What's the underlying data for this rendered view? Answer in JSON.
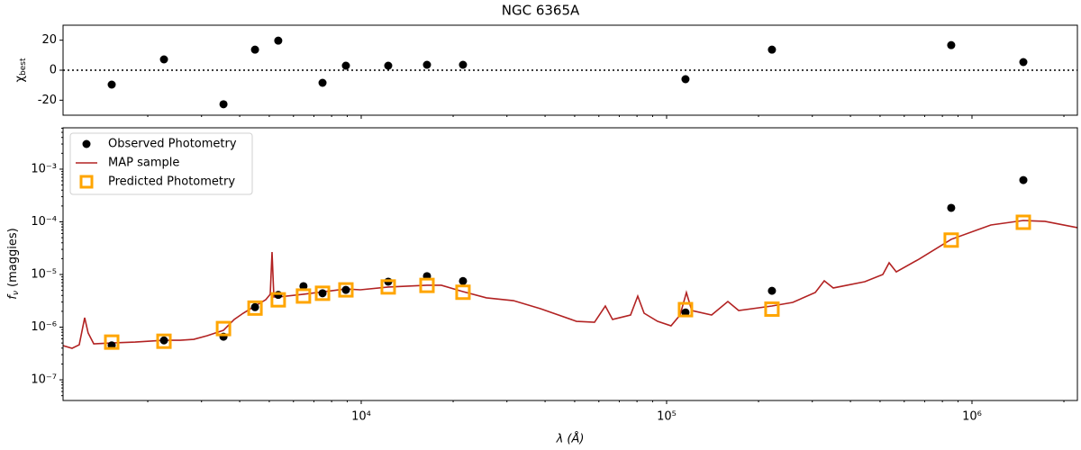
{
  "chart_data": [
    {
      "type": "scatter",
      "title": "NGC 6365A",
      "y_label": "χ",
      "y_label_sub": "best",
      "x": [
        1524,
        2260,
        3540,
        4490,
        5350,
        7470,
        8910,
        12260,
        16420,
        21540,
        115300,
        221300,
        855000,
        1473000
      ],
      "values": [
        -9.6,
        7.2,
        -22.7,
        13.7,
        19.7,
        -8.4,
        3,
        3,
        3.6,
        3.6,
        -6,
        13.7,
        16.7,
        5.4
      ],
      "color": "#000000",
      "xlim": [
        1056,
        2214000
      ],
      "log_x": true,
      "ylim": [
        -30,
        30
      ],
      "yticks": [
        -20,
        0,
        20
      ],
      "hline": 0
    },
    {
      "type": "sed",
      "x_label": "λ (Å)",
      "y_label": "f",
      "y_label_sub": "ν",
      "y_label_rest": " (maggies)",
      "xlim": [
        1056,
        2214000
      ],
      "log_x": true,
      "ylim": [
        4.05e-08,
        0.0061
      ],
      "log_y": true,
      "xticks": [
        {
          "value": 10000,
          "label": "10⁴"
        },
        {
          "value": 100000,
          "label": "10⁵"
        },
        {
          "value": 1000000,
          "label": "10⁶"
        }
      ],
      "yticks": [
        {
          "value": 1e-07,
          "label": "10⁻⁷"
        },
        {
          "value": 1e-06,
          "label": "10⁻⁶"
        },
        {
          "value": 1e-05,
          "label": "10⁻⁵"
        },
        {
          "value": 0.0001,
          "label": "10⁻⁴"
        },
        {
          "value": 0.001,
          "label": "10⁻³"
        }
      ],
      "legend": "upper left",
      "series": [
        {
          "name": "Observed Photometry",
          "color": "#000000",
          "marker": "circle",
          "x": [
            1524,
            2260,
            3540,
            4490,
            5350,
            6470,
            7470,
            8910,
            12260,
            16420,
            21540,
            115300,
            221300,
            855000,
            1473000
          ],
          "values": [
            4.5e-07,
            5.6e-07,
            6.6e-07,
            2.4e-06,
            4.1e-06,
            6e-06,
            4.4e-06,
            5.1e-06,
            7.3e-06,
            9.3e-06,
            7.5e-06,
            1.9e-06,
            4.9e-06,
            0.000184,
            0.00062
          ]
        },
        {
          "name": "MAP sample",
          "color": "#b22222",
          "marker": "line",
          "x": [
            1056,
            1130,
            1193,
            1243,
            1276,
            1331,
            1524,
            1818,
            2260,
            2553,
            2828,
            3131,
            3538,
            3837,
            4108,
            4487,
            4868,
            5036,
            5105,
            5176,
            5354,
            6474,
            7568,
            8913,
            9932,
            12260,
            16420,
            18300,
            21530,
            25700,
            31510,
            38640,
            50700,
            58070,
            63000,
            66530,
            76200,
            80450,
            84400,
            93440,
            103400,
            110700,
            116100,
            120900,
            140400,
            158700,
            172200,
            221300,
            258800,
            306800,
            328300,
            351400,
            445600,
            510500,
            535400,
            565100,
            669900,
            855000,
            1153000,
            1472000,
            1733000,
            2214000
          ],
          "values": [
            4.46e-07,
            3.97e-07,
            4.64e-07,
            1.51e-06,
            7.74e-07,
            4.83e-07,
            5.02e-07,
            5.22e-07,
            5.65e-07,
            5.65e-07,
            5.87e-07,
            6.88e-07,
            8.71e-07,
            1.4e-06,
            1.84e-06,
            2.52e-06,
            3.32e-06,
            4.21e-06,
            2.67e-05,
            3.74e-06,
            3.74e-06,
            4.21e-06,
            4.73e-06,
            5.32e-06,
            5.12e-06,
            5.77e-06,
            6.24e-06,
            6.24e-06,
            4.73e-06,
            3.6e-06,
            3.19e-06,
            2.24e-06,
            1.29e-06,
            1.24e-06,
            2.52e-06,
            1.4e-06,
            1.7e-06,
            3.89e-06,
            1.84e-06,
            1.29e-06,
            1.06e-06,
            1.7e-06,
            4.55e-06,
            2.07e-06,
            1.7e-06,
            3.07e-06,
            2.07e-06,
            2.52e-06,
            2.95e-06,
            4.55e-06,
            7.59e-06,
            5.55e-06,
            7.29e-06,
            1e-05,
            1.67e-05,
            1.12e-05,
            1.95e-05,
            4.65e-05,
            8.71e-05,
            0.000106,
            0.000102,
            7.74e-05
          ]
        },
        {
          "name": "Predicted Photometry",
          "color": "#ffa500",
          "marker": "square",
          "x": [
            1524,
            2260,
            3540,
            4490,
            5350,
            6470,
            7470,
            8910,
            12260,
            16420,
            21540,
            115300,
            221300,
            855000,
            1473000
          ],
          "values": [
            5.2e-07,
            5.4e-07,
            9.4e-07,
            2.3e-06,
            3.3e-06,
            3.9e-06,
            4.4e-06,
            5.1e-06,
            5.8e-06,
            6.2e-06,
            4.6e-06,
            2.15e-06,
            2.2e-06,
            4.5e-05,
            9.8e-05
          ]
        }
      ]
    }
  ]
}
